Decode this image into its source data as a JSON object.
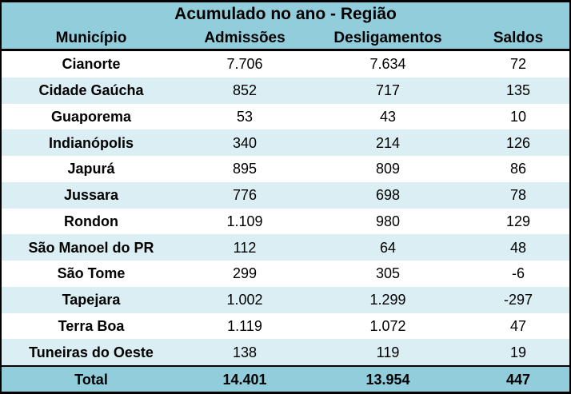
{
  "table": {
    "title": "Acumulado no ano - Região",
    "columns": [
      "Município",
      "Admissões",
      "Desligamentos",
      "Saldos"
    ],
    "rows": [
      {
        "municipio": "Cianorte",
        "admissoes": "7.706",
        "desligamentos": "7.634",
        "saldos": "72"
      },
      {
        "municipio": "Cidade Gaúcha",
        "admissoes": "852",
        "desligamentos": "717",
        "saldos": "135"
      },
      {
        "municipio": "Guaporema",
        "admissoes": "53",
        "desligamentos": "43",
        "saldos": "10"
      },
      {
        "municipio": "Indianópolis",
        "admissoes": "340",
        "desligamentos": "214",
        "saldos": "126"
      },
      {
        "municipio": "Japurá",
        "admissoes": "895",
        "desligamentos": "809",
        "saldos": "86"
      },
      {
        "municipio": "Jussara",
        "admissoes": "776",
        "desligamentos": "698",
        "saldos": "78"
      },
      {
        "municipio": "Rondon",
        "admissoes": "1.109",
        "desligamentos": "980",
        "saldos": "129"
      },
      {
        "municipio": "São Manoel do PR",
        "admissoes": "112",
        "desligamentos": "64",
        "saldos": "48"
      },
      {
        "municipio": "São Tome",
        "admissoes": "299",
        "desligamentos": "305",
        "saldos": "-6"
      },
      {
        "municipio": "Tapejara",
        "admissoes": "1.002",
        "desligamentos": "1.299",
        "saldos": "-297"
      },
      {
        "municipio": "Terra Boa",
        "admissoes": "1.119",
        "desligamentos": "1.072",
        "saldos": "47"
      },
      {
        "municipio": "Tuneiras do Oeste",
        "admissoes": "138",
        "desligamentos": "119",
        "saldos": "19"
      }
    ],
    "total": {
      "label": "Total",
      "admissoes": "14.401",
      "desligamentos": "13.954",
      "saldos": "447"
    }
  },
  "colors": {
    "header_bg": "#92CDDC",
    "alt_row_bg": "#DAEEF3",
    "white_row_bg": "#FFFFFF",
    "total_bg": "#92CDDC",
    "border": "#000000",
    "text": "#000000"
  },
  "chart_data": {
    "type": "table",
    "title": "Acumulado no ano - Região",
    "columns": [
      "Município",
      "Admissões",
      "Desligamentos",
      "Saldos"
    ],
    "rows": [
      [
        "Cianorte",
        7706,
        7634,
        72
      ],
      [
        "Cidade Gaúcha",
        852,
        717,
        135
      ],
      [
        "Guaporema",
        53,
        43,
        10
      ],
      [
        "Indianópolis",
        340,
        214,
        126
      ],
      [
        "Japurá",
        895,
        809,
        86
      ],
      [
        "Jussara",
        776,
        698,
        78
      ],
      [
        "Rondon",
        1109,
        980,
        129
      ],
      [
        "São Manoel do PR",
        112,
        64,
        48
      ],
      [
        "São Tome",
        299,
        305,
        -6
      ],
      [
        "Tapejara",
        1002,
        1299,
        -297
      ],
      [
        "Terra Boa",
        1119,
        1072,
        47
      ],
      [
        "Tuneiras do Oeste",
        138,
        119,
        19
      ]
    ],
    "total": [
      "Total",
      14401,
      13954,
      447
    ]
  }
}
